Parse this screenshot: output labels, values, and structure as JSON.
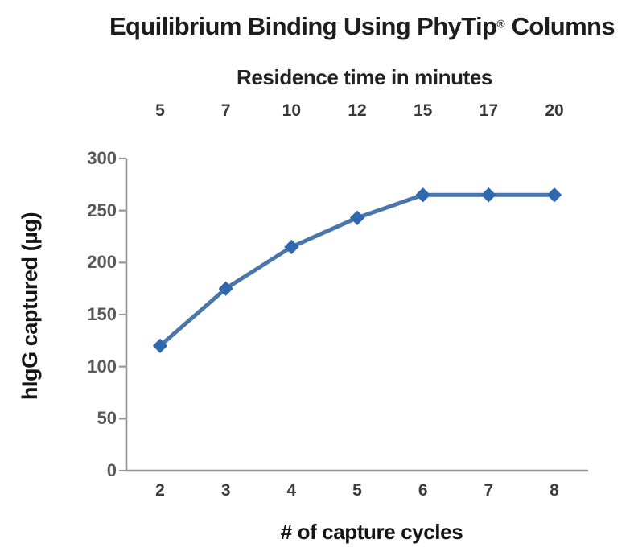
{
  "chart_data": {
    "type": "line",
    "title": "Equilibrium Binding Using PhyTip® Columns",
    "title_parts": {
      "main": "Equilibrium Binding Using PhyTip",
      "registered_mark": "®",
      "suffix": " Columns"
    },
    "top_axis": {
      "label": "Residence time in minutes",
      "tick_labels": [
        "5",
        "7",
        "10",
        "12",
        "15",
        "17",
        "20"
      ]
    },
    "xlabel": "# of capture cycles",
    "ylabel": "hIgG captured (µg)",
    "x": [
      2,
      3,
      4,
      5,
      6,
      7,
      8
    ],
    "x_tick_labels": [
      "2",
      "3",
      "4",
      "5",
      "6",
      "7",
      "8"
    ],
    "y_tick_labels": [
      "300",
      "250",
      "200",
      "150",
      "100",
      "50",
      "0"
    ],
    "ylim": [
      0,
      300
    ],
    "grid": false,
    "legend": "none",
    "series": [
      {
        "name": "hIgG captured (µg)",
        "marker": "diamond",
        "values": [
          120,
          175,
          215,
          243,
          265,
          265,
          265
        ]
      }
    ],
    "colors": {
      "line": "#4a77ab",
      "marker": "#2f68af",
      "axis": "#949494",
      "title_text": "#1d1d1d"
    }
  }
}
